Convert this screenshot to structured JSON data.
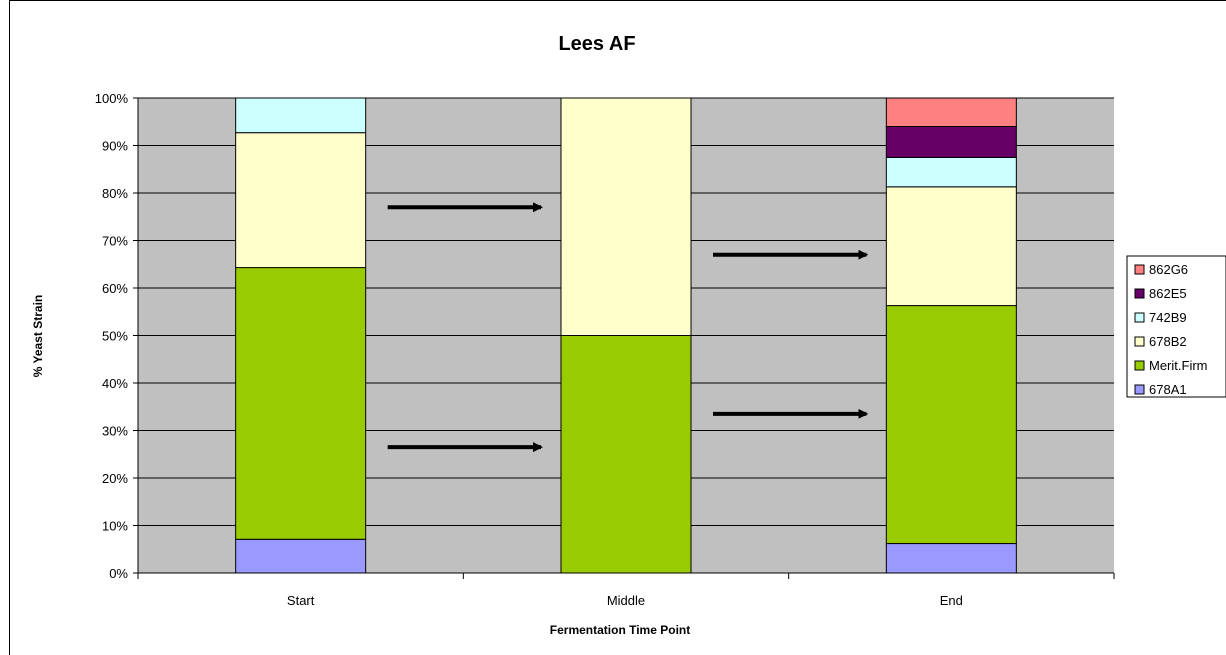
{
  "chart_data": {
    "type": "bar",
    "stacked": true,
    "percent_stacked": true,
    "title": "Lees AF",
    "xlabel": "Fermentation Time Point",
    "ylabel": "% Yeast Strain",
    "categories": [
      "Start",
      "Middle",
      "End"
    ],
    "ylim": [
      0,
      100
    ],
    "yticks": [
      "0%",
      "10%",
      "20%",
      "30%",
      "40%",
      "50%",
      "60%",
      "70%",
      "80%",
      "90%",
      "100%"
    ],
    "grid": true,
    "legend_position": "right",
    "plot_background": "#c0c0c0",
    "series": [
      {
        "name": "678A1",
        "color": "#9999ff",
        "values": [
          7.1,
          0,
          6.2
        ]
      },
      {
        "name": "Merit.Firm",
        "color": "#99cc00",
        "values": [
          57.2,
          50,
          50.1
        ]
      },
      {
        "name": "678B2",
        "color": "#ffffcc",
        "values": [
          28.4,
          50,
          25.0
        ]
      },
      {
        "name": "742B9",
        "color": "#ccffff",
        "values": [
          7.3,
          0,
          6.2
        ]
      },
      {
        "name": "862E5",
        "color": "#660066",
        "values": [
          0,
          0,
          6.5
        ]
      },
      {
        "name": "862G6",
        "color": "#ff8080",
        "values": [
          0,
          0,
          6.0
        ]
      }
    ],
    "annotations": [
      {
        "type": "arrow",
        "between": [
          "Start",
          "Middle"
        ],
        "y": 77
      },
      {
        "type": "arrow",
        "between": [
          "Start",
          "Middle"
        ],
        "y": 26.5
      },
      {
        "type": "arrow",
        "between": [
          "Middle",
          "End"
        ],
        "y": 67
      },
      {
        "type": "arrow",
        "between": [
          "Middle",
          "End"
        ],
        "y": 33.5
      }
    ]
  }
}
